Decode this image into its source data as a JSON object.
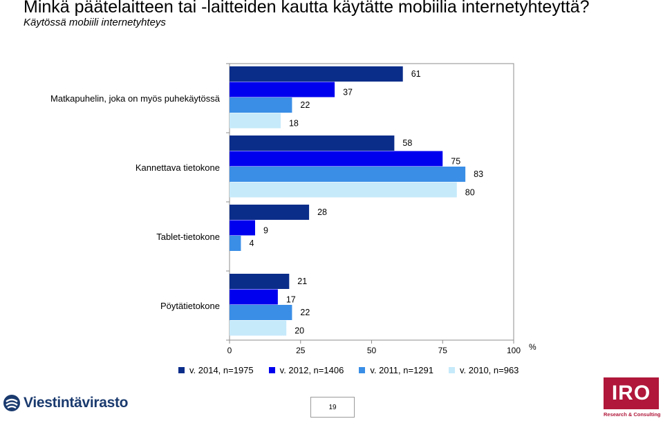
{
  "slide": {
    "title": "Minkä päätelaitteen tai -laitteiden kautta käytätte mobiilia internetyhteyttä?",
    "subtitle": "Käytössä mobiili internetyhteys",
    "page_number": "19"
  },
  "logos": {
    "left": "Viestintävirasto",
    "right_mark": "IRO",
    "right_tagline": "Research & Consulting"
  },
  "colors": {
    "series_2014": "#0b2d8a",
    "series_2012": "#0000ee",
    "series_2011": "#3a8ee6",
    "series_2010": "#c6eafa"
  },
  "chart_data": {
    "type": "bar",
    "orientation": "horizontal",
    "title": "",
    "xlabel": "%",
    "ylabel": "",
    "xlim": [
      0,
      100
    ],
    "x_ticks": [
      0,
      25,
      50,
      75,
      100
    ],
    "grid": false,
    "legend_position": "bottom",
    "categories": [
      "Matkapuhelin, joka on myös puhekäytössä",
      "Kannettava tietokone",
      "Tablet-tietokone",
      "Pöytätietokone"
    ],
    "series": [
      {
        "name": "v. 2014, n=1975",
        "values": [
          61,
          58,
          28,
          21
        ]
      },
      {
        "name": "v. 2012, n=1406",
        "values": [
          37,
          75,
          9,
          17
        ]
      },
      {
        "name": "v. 2011, n=1291",
        "values": [
          22,
          83,
          4,
          22
        ]
      },
      {
        "name": "v. 2010, n=963",
        "values": [
          18,
          80,
          null,
          20
        ]
      }
    ]
  }
}
